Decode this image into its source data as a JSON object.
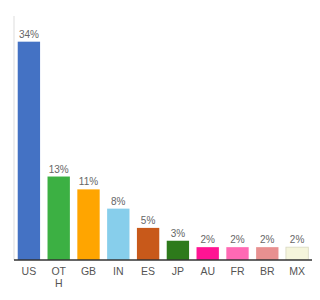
{
  "chart_data": {
    "type": "bar",
    "categories": [
      "US",
      "OT\nH",
      "GB",
      "IN",
      "ES",
      "JP",
      "AU",
      "FR",
      "BR",
      "MX"
    ],
    "values": [
      34,
      13,
      11,
      8,
      5,
      3,
      2,
      2,
      2,
      2
    ],
    "value_labels": [
      "34%",
      "13%",
      "11%",
      "8%",
      "5%",
      "3%",
      "2%",
      "2%",
      "2%",
      "2%"
    ],
    "colors": [
      "#4472c4",
      "#3cb043",
      "#ffa500",
      "#87ceeb",
      "#c8591a",
      "#2d7a1b",
      "#ff1493",
      "#ff69b4",
      "#e89090",
      "#f5f5dc"
    ],
    "ylim": [
      0,
      38
    ],
    "yticks": [],
    "data_labels": true,
    "tick_labels": "x",
    "grid": false
  }
}
